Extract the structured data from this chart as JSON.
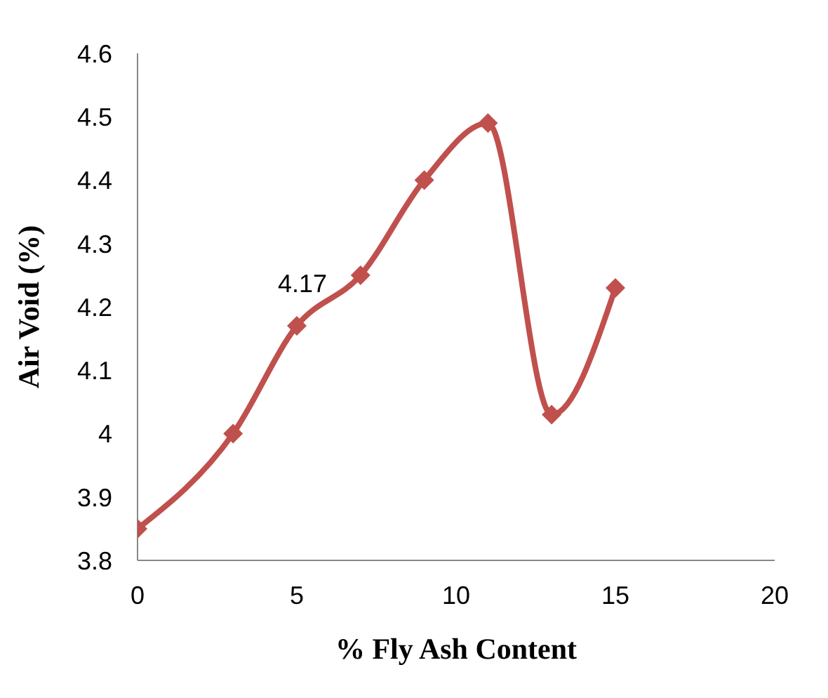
{
  "chart_data": {
    "type": "line",
    "xlabel": "% Fly Ash Content",
    "ylabel": "Air Void (%)",
    "x": [
      0,
      3,
      5,
      7,
      9,
      11,
      13,
      15
    ],
    "series": [
      {
        "color": "#c0504d",
        "values": [
          3.85,
          4.0,
          4.17,
          4.25,
          4.4,
          4.49,
          4.03,
          4.23
        ]
      }
    ],
    "xlim": [
      0,
      20
    ],
    "xticks": [
      0,
      5,
      10,
      15,
      20
    ],
    "ylim": [
      3.8,
      4.6
    ],
    "yticks": [
      3.8,
      3.9,
      4,
      4.1,
      4.2,
      4.3,
      4.4,
      4.5,
      4.6
    ],
    "annotations": [
      {
        "text": "4.17",
        "x": 5,
        "y": 4.17
      }
    ],
    "marker": "diamond",
    "grid": false,
    "legend": false
  }
}
